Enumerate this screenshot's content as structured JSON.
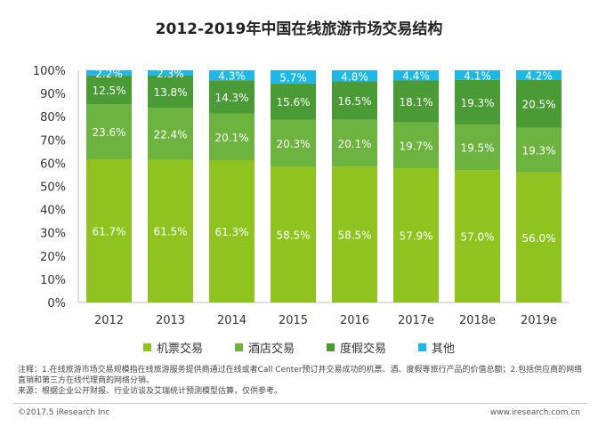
{
  "title": "2012-2019年中国在线旅游市场交易结构",
  "chart_data": {
    "type": "bar",
    "stacked": true,
    "percent_stacked": true,
    "categories": [
      "2012",
      "2013",
      "2014",
      "2015",
      "2016",
      "2017e",
      "2018e",
      "2019e"
    ],
    "series": [
      {
        "name": "机票交易",
        "color": "#8fc31f",
        "values": [
          61.7,
          61.5,
          61.3,
          58.5,
          58.5,
          57.9,
          57.0,
          56.0
        ]
      },
      {
        "name": "酒店交易",
        "color": "#6db33f",
        "values": [
          23.6,
          22.4,
          20.1,
          20.3,
          20.1,
          19.7,
          19.5,
          19.3
        ]
      },
      {
        "name": "度假交易",
        "color": "#4a9a35",
        "values": [
          12.5,
          13.8,
          14.3,
          15.6,
          16.5,
          18.1,
          19.3,
          20.5
        ]
      },
      {
        "name": "其他",
        "color": "#1fb8e6",
        "values": [
          2.2,
          2.3,
          4.3,
          5.7,
          4.8,
          4.4,
          4.1,
          4.2
        ]
      }
    ],
    "y_ticks": [
      "0%",
      "10%",
      "20%",
      "30%",
      "40%",
      "50%",
      "60%",
      "70%",
      "80%",
      "90%",
      "100%"
    ],
    "ylim": [
      0,
      100
    ],
    "legend_position": "bottom",
    "grid": false
  },
  "notes": {
    "line1": "注释：1.在线旅游市场交易规模指在线旅游服务提供商通过在线或者Call Center预订并交易成功的机票、酒、度假等旅行产品的价值总额；2.包括供应商的网络直销和第三方在线代理商的网络分销。",
    "line2": "来源：根据企业公开财报、行业访谈及艾瑞统计预测模型估算，仅供参考。"
  },
  "footer": {
    "left": "©2017.5 iResearch Inc",
    "right": "www.iresearch.com.cn"
  }
}
